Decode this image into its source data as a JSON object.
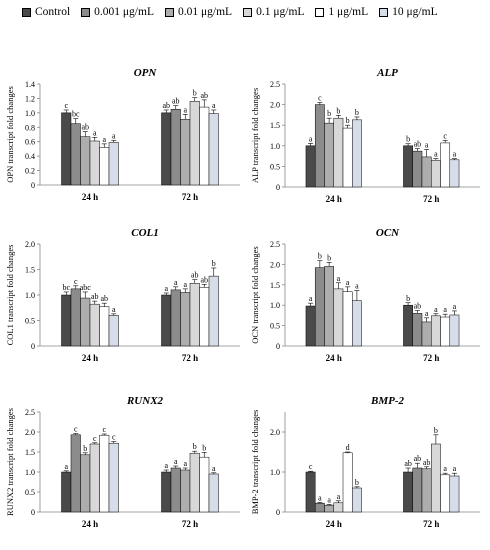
{
  "legend": [
    {
      "label": "Control",
      "color": "#4a4a4a"
    },
    {
      "label": "0.001 μg/mL",
      "color": "#8c8c8c"
    },
    {
      "label": "0.01 μg/mL",
      "color": "#adadad"
    },
    {
      "label": "0.1 μg/mL",
      "color": "#d8d8d8"
    },
    {
      "label": "1 μg/mL",
      "color": "#ffffff"
    },
    {
      "label": "10 μg/mL",
      "color": "#d6dde8"
    }
  ],
  "chart_data": [
    {
      "type": "bar",
      "title": "OPN",
      "ylabel": "OPN transcript fold changes",
      "categories": [
        "24 h",
        "72 h"
      ],
      "ylim": [
        0,
        1.4
      ],
      "yticks": [
        "0",
        "0.2",
        "0.4",
        "0.6",
        "0.8",
        "1.0",
        "1.2",
        "1.4"
      ],
      "series": [
        {
          "name": "Control",
          "values": [
            1.0,
            1.0
          ],
          "errors": [
            0.04,
            0.04
          ],
          "letters": [
            "c",
            "ab"
          ]
        },
        {
          "name": "0.001 μg/mL",
          "values": [
            0.85,
            1.05
          ],
          "errors": [
            0.07,
            0.05
          ],
          "letters": [
            "bc",
            "ab"
          ]
        },
        {
          "name": "0.01 μg/mL",
          "values": [
            0.67,
            0.91
          ],
          "errors": [
            0.07,
            0.07
          ],
          "letters": [
            "ab",
            "a"
          ]
        },
        {
          "name": "0.1 μg/mL",
          "values": [
            0.61,
            1.16
          ],
          "errors": [
            0.05,
            0.05
          ],
          "letters": [
            "a",
            "b"
          ]
        },
        {
          "name": "1 μg/mL",
          "values": [
            0.52,
            1.08
          ],
          "errors": [
            0.05,
            0.1
          ],
          "letters": [
            "a",
            "ab"
          ]
        },
        {
          "name": "10 μg/mL",
          "values": [
            0.59,
            0.99
          ],
          "errors": [
            0.03,
            0.05
          ],
          "letters": [
            "a",
            "a"
          ]
        }
      ]
    },
    {
      "type": "bar",
      "title": "ALP",
      "ylabel": "ALP transcript fold changes",
      "categories": [
        "24 h",
        "72 h"
      ],
      "ylim": [
        0,
        2.5
      ],
      "yticks": [
        "0",
        "0.5",
        "1.0",
        "1.5",
        "2.0",
        "2.5"
      ],
      "series": [
        {
          "name": "Control",
          "values": [
            1.0,
            1.0
          ],
          "errors": [
            0.06,
            0.05
          ],
          "letters": [
            "a",
            "b"
          ]
        },
        {
          "name": "0.001 μg/mL",
          "values": [
            2.0,
            0.87
          ],
          "errors": [
            0.05,
            0.06
          ],
          "letters": [
            "c",
            "ab"
          ]
        },
        {
          "name": "0.01 μg/mL",
          "values": [
            1.55,
            0.73
          ],
          "errors": [
            0.12,
            0.18
          ],
          "letters": [
            "b",
            "a"
          ]
        },
        {
          "name": "0.1 μg/mL",
          "values": [
            1.67,
            0.65
          ],
          "errors": [
            0.07,
            0.04
          ],
          "letters": [
            "b",
            "a"
          ]
        },
        {
          "name": "1 μg/mL",
          "values": [
            1.43,
            1.07
          ],
          "errors": [
            0.07,
            0.06
          ],
          "letters": [
            "b",
            "c"
          ]
        },
        {
          "name": "10 μg/mL",
          "values": [
            1.63,
            0.66
          ],
          "errors": [
            0.07,
            0.03
          ],
          "letters": [
            "b",
            "a"
          ]
        }
      ]
    },
    {
      "type": "bar",
      "title": "COL1",
      "ylabel": "COL1 transcript fold changes",
      "categories": [
        "24 h",
        "72 h"
      ],
      "ylim": [
        0,
        2.0
      ],
      "yticks": [
        "0",
        "0.5",
        "1.0",
        "1.5",
        "2.0"
      ],
      "series": [
        {
          "name": "Control",
          "values": [
            1.0,
            1.0
          ],
          "errors": [
            0.06,
            0.04
          ],
          "letters": [
            "bc",
            "a"
          ]
        },
        {
          "name": "0.001 μg/mL",
          "values": [
            1.12,
            1.1
          ],
          "errors": [
            0.06,
            0.06
          ],
          "letters": [
            "c",
            "a"
          ]
        },
        {
          "name": "0.01 μg/mL",
          "values": [
            0.94,
            1.05
          ],
          "errors": [
            0.12,
            0.07
          ],
          "letters": [
            "abc",
            "a"
          ]
        },
        {
          "name": "0.1 μg/mL",
          "values": [
            0.82,
            1.23
          ],
          "errors": [
            0.06,
            0.07
          ],
          "letters": [
            "ab",
            "ab"
          ]
        },
        {
          "name": "1 μg/mL",
          "values": [
            0.77,
            1.15
          ],
          "errors": [
            0.07,
            0.06
          ],
          "letters": [
            "ab",
            "ab"
          ]
        },
        {
          "name": "10 μg/mL",
          "values": [
            0.6,
            1.37
          ],
          "errors": [
            0.03,
            0.16
          ],
          "letters": [
            "a",
            "b"
          ]
        }
      ]
    },
    {
      "type": "bar",
      "title": "OCN",
      "ylabel": "OCN transcript fold changes",
      "categories": [
        "24 h",
        "72 h"
      ],
      "ylim": [
        0,
        2.5
      ],
      "yticks": [
        "0",
        "0.5",
        "1.0",
        "1.5",
        "2.0",
        "2.5"
      ],
      "series": [
        {
          "name": "Control",
          "values": [
            0.98,
            1.0
          ],
          "errors": [
            0.07,
            0.06
          ],
          "letters": [
            "a",
            "b"
          ]
        },
        {
          "name": "0.001 μg/mL",
          "values": [
            1.92,
            0.8
          ],
          "errors": [
            0.17,
            0.07
          ],
          "letters": [
            "b",
            "ab"
          ]
        },
        {
          "name": "0.01 μg/mL",
          "values": [
            1.95,
            0.59
          ],
          "errors": [
            0.1,
            0.1
          ],
          "letters": [
            "b",
            "a"
          ]
        },
        {
          "name": "0.1 μg/mL",
          "values": [
            1.4,
            0.74
          ],
          "errors": [
            0.15,
            0.05
          ],
          "letters": [
            "a",
            "a"
          ]
        },
        {
          "name": "1 μg/mL",
          "values": [
            1.33,
            0.71
          ],
          "errors": [
            0.12,
            0.07
          ],
          "letters": [
            "a",
            "a"
          ]
        },
        {
          "name": "10 μg/mL",
          "values": [
            1.11,
            0.76
          ],
          "errors": [
            0.25,
            0.1
          ],
          "letters": [
            "a",
            "a"
          ]
        }
      ]
    },
    {
      "type": "bar",
      "title": "RUNX2",
      "ylabel": "RUNX2 transcript fold changes",
      "categories": [
        "24 h",
        "72 h"
      ],
      "ylim": [
        0,
        2.5
      ],
      "yticks": [
        "0",
        "0.5",
        "1.0",
        "1.5",
        "2.0",
        "2.5"
      ],
      "series": [
        {
          "name": "Control",
          "values": [
            1.0,
            1.0
          ],
          "errors": [
            0.03,
            0.05
          ],
          "letters": [
            "a",
            "a"
          ]
        },
        {
          "name": "0.001 μg/mL",
          "values": [
            1.93,
            1.1
          ],
          "errors": [
            0.03,
            0.05
          ],
          "letters": [
            "c",
            "a"
          ]
        },
        {
          "name": "0.01 μg/mL",
          "values": [
            1.43,
            1.05
          ],
          "errors": [
            0.05,
            0.05
          ],
          "letters": [
            "b",
            "a"
          ]
        },
        {
          "name": "0.1 μg/mL",
          "values": [
            1.7,
            1.47
          ],
          "errors": [
            0.03,
            0.05
          ],
          "letters": [
            "c",
            "b"
          ]
        },
        {
          "name": "1 μg/mL",
          "values": [
            1.92,
            1.37
          ],
          "errors": [
            0.03,
            0.12
          ],
          "letters": [
            "c",
            "b"
          ]
        },
        {
          "name": "10 μg/mL",
          "values": [
            1.72,
            0.95
          ],
          "errors": [
            0.04,
            0.03
          ],
          "letters": [
            "c",
            "a"
          ]
        }
      ]
    },
    {
      "type": "bar",
      "title": "BMP-2",
      "ylabel": "BMP-2 transcript fold changes",
      "categories": [
        "24 h",
        "72 h"
      ],
      "ylim": [
        0,
        2.5
      ],
      "yticks": [
        "0",
        "1.0",
        "2.0"
      ],
      "series": [
        {
          "name": "Control",
          "values": [
            1.0,
            1.0
          ],
          "errors": [
            0.02,
            0.1
          ],
          "letters": [
            "c",
            "ab"
          ]
        },
        {
          "name": "0.001 μg/mL",
          "values": [
            0.22,
            1.1
          ],
          "errors": [
            0.02,
            0.12
          ],
          "letters": [
            "a",
            "ab"
          ]
        },
        {
          "name": "0.01 μg/mL",
          "values": [
            0.17,
            1.08
          ],
          "errors": [
            0.02,
            0.05
          ],
          "letters": [
            "a",
            "ab"
          ]
        },
        {
          "name": "0.1 μg/mL",
          "values": [
            0.23,
            1.7
          ],
          "errors": [
            0.05,
            0.23
          ],
          "letters": [
            "a",
            "b"
          ]
        },
        {
          "name": "1 μg/mL",
          "values": [
            1.48,
            0.93
          ],
          "errors": [
            0.02,
            0.04
          ],
          "letters": [
            "d",
            "a"
          ]
        },
        {
          "name": "10 μg/mL",
          "values": [
            0.6,
            0.9
          ],
          "errors": [
            0.03,
            0.07
          ],
          "letters": [
            "b",
            "a"
          ]
        }
      ]
    }
  ]
}
